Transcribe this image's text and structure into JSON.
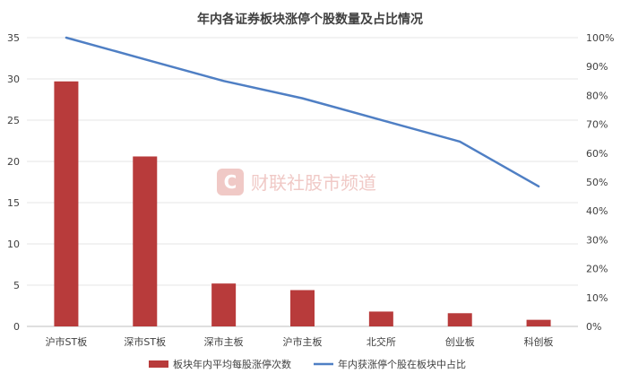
{
  "chart_data": {
    "type": "bar",
    "title": "年内各证券板块涨停个股数量及占比情况",
    "categories": [
      "沪市ST板",
      "深市ST板",
      "深市主板",
      "沪市主板",
      "北交所",
      "创业板",
      "科创板"
    ],
    "series": [
      {
        "name": "板块年内平均每股涨停次数",
        "type": "bar",
        "axis": "left",
        "color": "#b83b3b",
        "values": [
          29.7,
          20.6,
          5.2,
          4.4,
          1.8,
          1.6,
          0.8
        ]
      },
      {
        "name": "年内获涨停个股在板块中占比",
        "type": "line",
        "axis": "right",
        "color": "#4f7fc4",
        "values": [
          100,
          92.5,
          85,
          79,
          71.5,
          64,
          48.5
        ]
      }
    ],
    "y_left": {
      "ylim": [
        0,
        35
      ],
      "ticks": [
        "0",
        "5",
        "10",
        "15",
        "20",
        "25",
        "30",
        "35"
      ]
    },
    "y_right": {
      "ylim": [
        0,
        100
      ],
      "ticks": [
        "0%",
        "10%",
        "20%",
        "30%",
        "40%",
        "50%",
        "60%",
        "70%",
        "80%",
        "90%",
        "100%"
      ]
    },
    "grid": true,
    "legend_position": "bottom",
    "watermark": {
      "logo_letter": "C",
      "text": "财联社股市频道"
    }
  }
}
